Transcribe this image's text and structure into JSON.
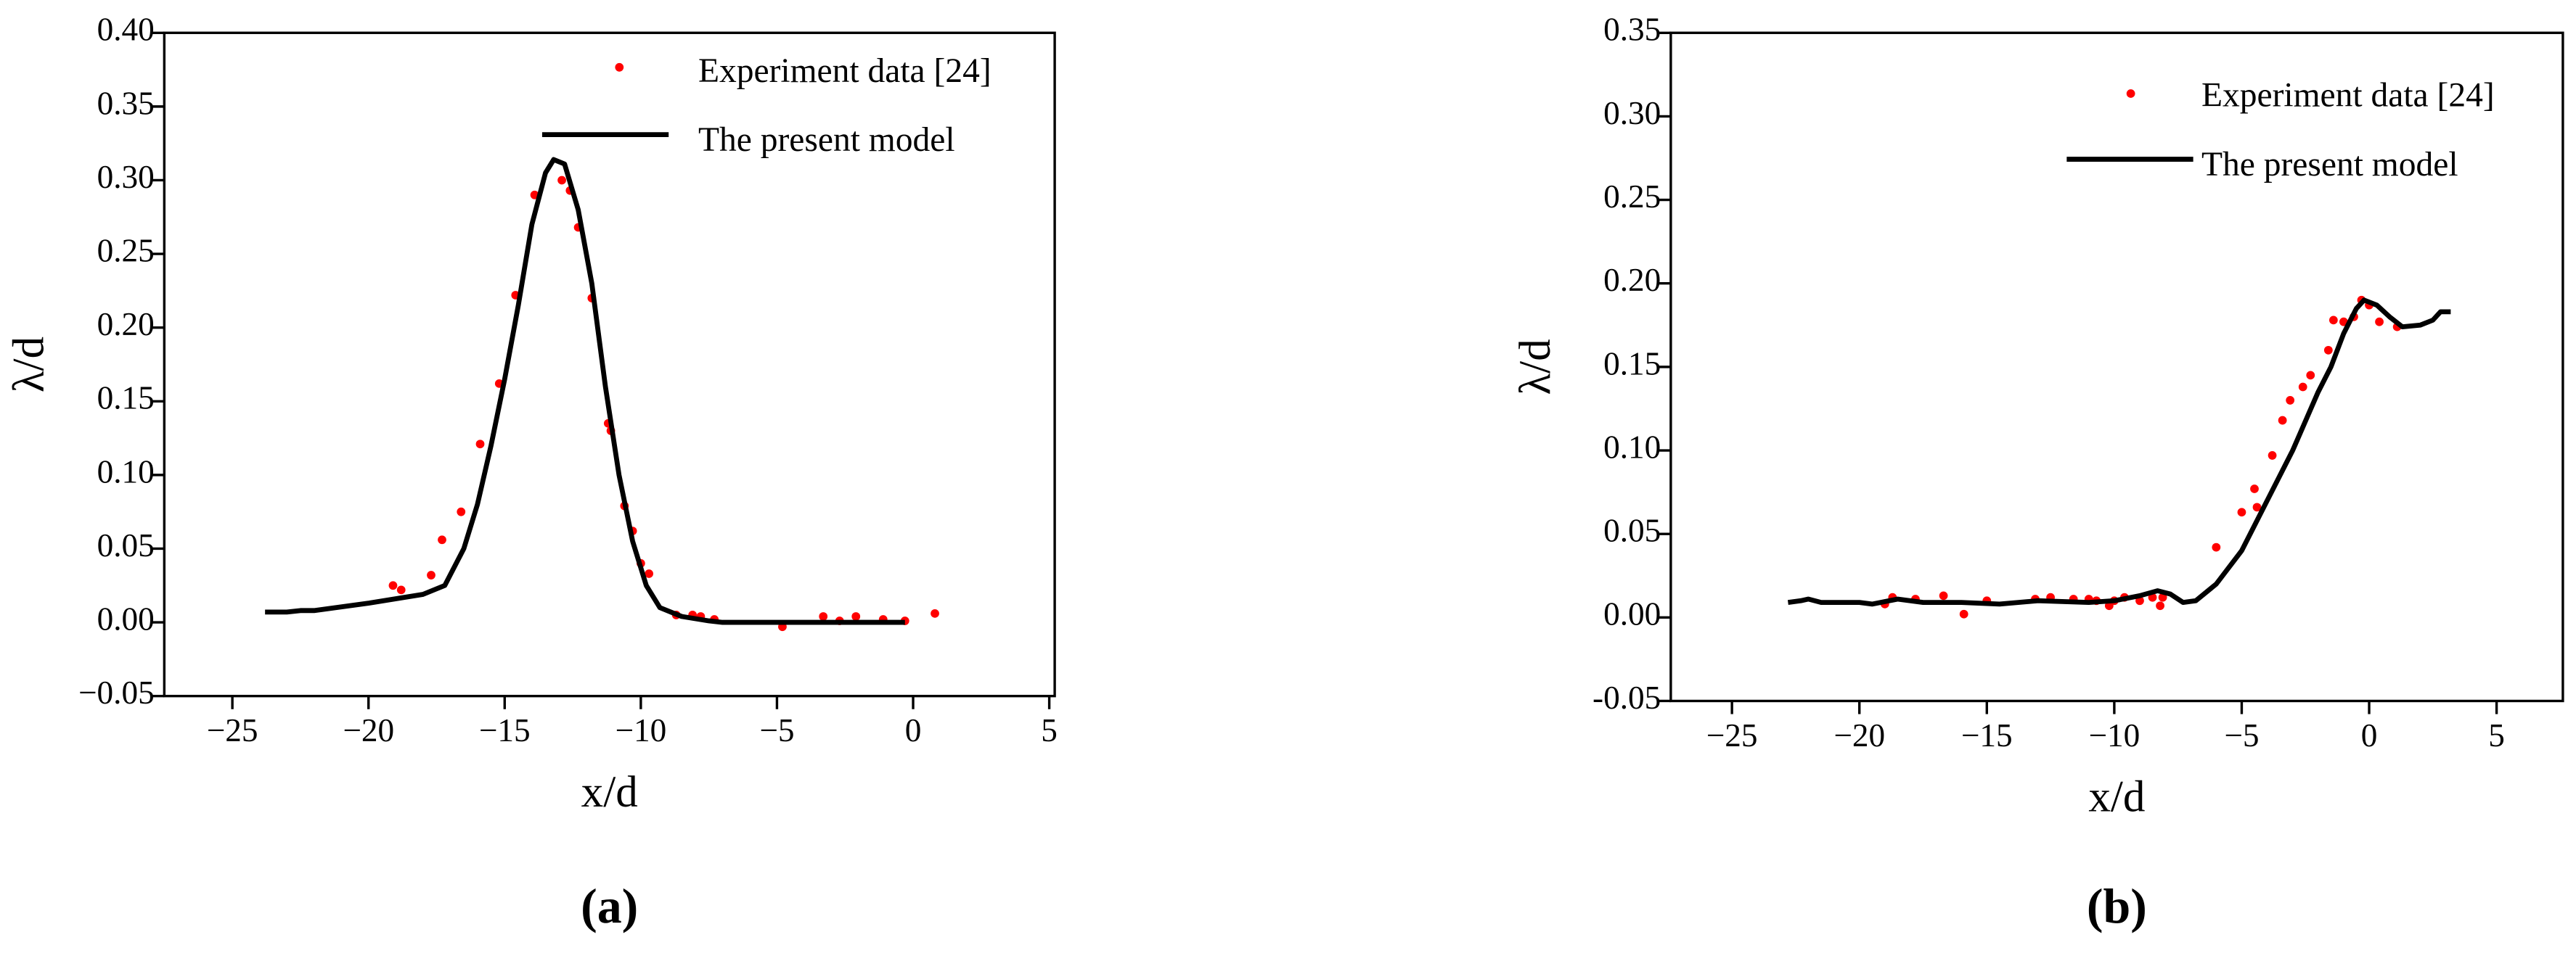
{
  "chart_data": [
    {
      "type": "line",
      "caption": "(a)",
      "x_label": "x/d",
      "y_label": "λ/d",
      "xlim": [
        -27.5,
        5.2
      ],
      "ylim": [
        -0.05,
        0.4
      ],
      "xticks": [
        {
          "value": -25,
          "label": "−25"
        },
        {
          "value": -20,
          "label": "−20"
        },
        {
          "value": -15,
          "label": "−15"
        },
        {
          "value": -10,
          "label": "−10"
        },
        {
          "value": -5,
          "label": "−5"
        },
        0,
        5
      ],
      "yticks": [
        {
          "value": -0.05,
          "label": "−0.05"
        },
        {
          "value": 0,
          "label": "0.00"
        },
        0.05,
        {
          "value": 0.1,
          "label": "0.10"
        },
        0.15,
        {
          "value": 0.2,
          "label": "0.20"
        },
        0.25,
        {
          "value": 0.3,
          "label": "0.30"
        },
        0.35,
        {
          "value": 0.4,
          "label": "0.40"
        }
      ],
      "series": [
        {
          "name": "Experiment data [24]",
          "type": "scatter",
          "color": "#ff0000",
          "x": [
            -19.1,
            -18.8,
            -17.7,
            -17.3,
            -16.6,
            -15.9,
            -15.2,
            -14.6,
            -13.9,
            -12.9,
            -12.6,
            -12.3,
            -11.8,
            -11.2,
            -11.1,
            -10.6,
            -10.3,
            -10.0,
            -9.7,
            -8.7,
            -8.1,
            -7.8,
            -7.3,
            -4.8,
            -3.3,
            -2.7,
            -2.1,
            -1.1,
            -0.3,
            0.8
          ],
          "values": [
            0.025,
            0.022,
            0.032,
            0.056,
            0.075,
            0.121,
            0.162,
            0.222,
            0.29,
            0.3,
            0.293,
            0.268,
            0.22,
            0.135,
            0.13,
            0.079,
            0.062,
            0.04,
            0.033,
            0.005,
            0.005,
            0.004,
            0.002,
            -0.003,
            0.004,
            0.001,
            0.004,
            0.002,
            0.001,
            0.006
          ]
        },
        {
          "name": "The present model",
          "type": "line",
          "color": "#000000",
          "x": [
            -23.8,
            -23,
            -22.5,
            -22,
            -20,
            -18,
            -17.2,
            -16.5,
            -16,
            -15.5,
            -15,
            -14.5,
            -14,
            -13.5,
            -13.2,
            -12.8,
            -12.3,
            -11.8,
            -11.3,
            -10.8,
            -10.3,
            -9.8,
            -9.3,
            -8.5,
            -7.5,
            -7,
            -5,
            -3,
            -1,
            -0.3
          ],
          "values": [
            0.007,
            0.007,
            0.008,
            0.008,
            0.013,
            0.019,
            0.025,
            0.05,
            0.08,
            0.12,
            0.165,
            0.215,
            0.27,
            0.305,
            0.314,
            0.311,
            0.28,
            0.23,
            0.16,
            0.1,
            0.055,
            0.025,
            0.01,
            0.004,
            0.001,
            0,
            0,
            0,
            0,
            0
          ]
        }
      ]
    },
    {
      "type": "line",
      "caption": "(b)",
      "x_label": "x/d",
      "y_label": "λ/d",
      "xlim": [
        -27.4,
        7.6
      ],
      "ylim": [
        -0.05,
        0.35
      ],
      "xticks": [
        {
          "value": -25,
          "label": "−25"
        },
        {
          "value": -20,
          "label": "−20"
        },
        {
          "value": -15,
          "label": "−15"
        },
        {
          "value": -10,
          "label": "−10"
        },
        {
          "value": -5,
          "label": "−5"
        },
        0,
        5
      ],
      "yticks": [
        -0.05,
        {
          "value": 0,
          "label": "0.00"
        },
        0.05,
        {
          "value": 0.1,
          "label": "0.10"
        },
        0.15,
        {
          "value": 0.2,
          "label": "0.20"
        },
        0.25,
        {
          "value": 0.3,
          "label": "0.30"
        },
        0.35
      ],
      "series": [
        {
          "name": "Experiment data [24]",
          "type": "scatter",
          "color": "#ff0000",
          "x": [
            -19,
            -18.7,
            -17.8,
            -16.7,
            -15.9,
            -15,
            -13.1,
            -12.5,
            -11.6,
            -11,
            -10.7,
            -10.2,
            -10,
            -9.6,
            -9,
            -8.5,
            -8.2,
            -8.1,
            -6,
            -5,
            -4.5,
            -4.4,
            -3.8,
            -3.4,
            -3.1,
            -2.6,
            -2.3,
            -1.6,
            -1.4,
            -1,
            -0.6,
            -0.3,
            0,
            0.4,
            1.1
          ],
          "values": [
            0.008,
            0.012,
            0.011,
            0.013,
            0.002,
            0.01,
            0.011,
            0.012,
            0.011,
            0.011,
            0.01,
            0.007,
            0.01,
            0.012,
            0.01,
            0.012,
            0.007,
            0.012,
            0.042,
            0.063,
            0.077,
            0.066,
            0.097,
            0.118,
            0.13,
            0.138,
            0.145,
            0.16,
            0.178,
            0.177,
            0.18,
            0.19,
            0.187,
            0.177,
            0.174
          ]
        },
        {
          "name": "The present model",
          "type": "line",
          "color": "#000000",
          "x": [
            -22.8,
            -22.3,
            -22,
            -21.5,
            -20,
            -19.5,
            -18.5,
            -17.5,
            -16,
            -14.5,
            -13,
            -11,
            -10,
            -9,
            -8.3,
            -7.8,
            -7.3,
            -6.8,
            -6,
            -5,
            -4,
            -3,
            -2,
            -1.5,
            -1,
            -0.5,
            -0.2,
            0.3,
            0.8,
            1.3,
            2,
            2.5,
            2.8,
            3.2
          ],
          "values": [
            0.009,
            0.01,
            0.011,
            0.009,
            0.009,
            0.008,
            0.011,
            0.009,
            0.009,
            0.008,
            0.01,
            0.009,
            0.01,
            0.013,
            0.016,
            0.014,
            0.009,
            0.01,
            0.02,
            0.04,
            0.07,
            0.1,
            0.135,
            0.15,
            0.17,
            0.185,
            0.19,
            0.187,
            0.18,
            0.174,
            0.175,
            0.178,
            0.183,
            0.183
          ]
        }
      ]
    }
  ]
}
